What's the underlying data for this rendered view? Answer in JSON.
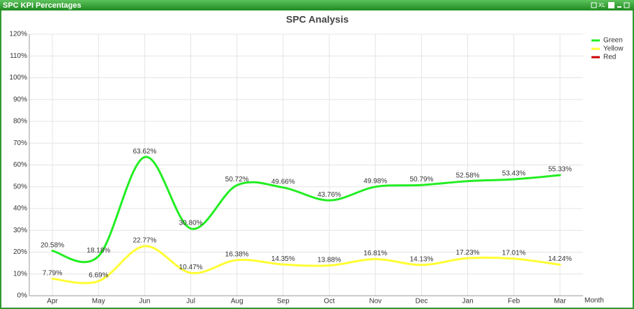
{
  "window": {
    "title": "SPC KPI Percentages",
    "toolbar_text": "XL"
  },
  "chart_data": {
    "type": "line",
    "title": "SPC Analysis",
    "xlabel": "Month",
    "categories": [
      "Apr",
      "May",
      "Jun",
      "Jul",
      "Aug",
      "Sep",
      "Oct",
      "Nov",
      "Dec",
      "Jan",
      "Feb",
      "Mar"
    ],
    "series": [
      {
        "name": "Green",
        "color": "#22ee22",
        "values": [
          20.58,
          18.18,
          63.62,
          30.8,
          50.72,
          49.66,
          43.76,
          49.98,
          50.79,
          52.58,
          53.43,
          55.33
        ],
        "value_labels": [
          "20.58%",
          "18.18%",
          "63.62%",
          "30.80%",
          "50.72%",
          "49.66%",
          "43.76%",
          "49.98%",
          "50.79%",
          "52.58%",
          "53.43%",
          "55.33%"
        ]
      },
      {
        "name": "Yellow",
        "color": "#ffff33",
        "values": [
          7.79,
          6.69,
          22.77,
          10.47,
          16.38,
          14.35,
          13.88,
          16.81,
          14.13,
          17.23,
          17.01,
          14.24
        ],
        "value_labels": [
          "7.79%",
          "6.69%",
          "22.77%",
          "10.47%",
          "16.38%",
          "14.35%",
          "13.88%",
          "16.81%",
          "14.13%",
          "17.23%",
          "17.01%",
          "14.24%"
        ]
      },
      {
        "name": "Red",
        "color": "#cc0000",
        "values": [
          null,
          null,
          null,
          null,
          null,
          null,
          null,
          null,
          null,
          null,
          null,
          null
        ]
      }
    ],
    "ylim": [
      0,
      120
    ],
    "yticks": [
      {
        "value": 0,
        "label": "0%"
      },
      {
        "value": 10,
        "label": "10%"
      },
      {
        "value": 20,
        "label": "20%"
      },
      {
        "value": 30,
        "label": "30%"
      },
      {
        "value": 40,
        "label": "40%"
      },
      {
        "value": 50,
        "label": "50%"
      },
      {
        "value": 60,
        "label": "60%"
      },
      {
        "value": 70,
        "label": "70%"
      },
      {
        "value": 80,
        "label": "80%"
      },
      {
        "value": 90,
        "label": "90%"
      },
      {
        "value": 100,
        "label": "100%"
      },
      {
        "value": 110,
        "label": "110%"
      },
      {
        "value": 120,
        "label": "120%"
      }
    ],
    "grid": true,
    "smooth": true,
    "legend": "top-right"
  }
}
